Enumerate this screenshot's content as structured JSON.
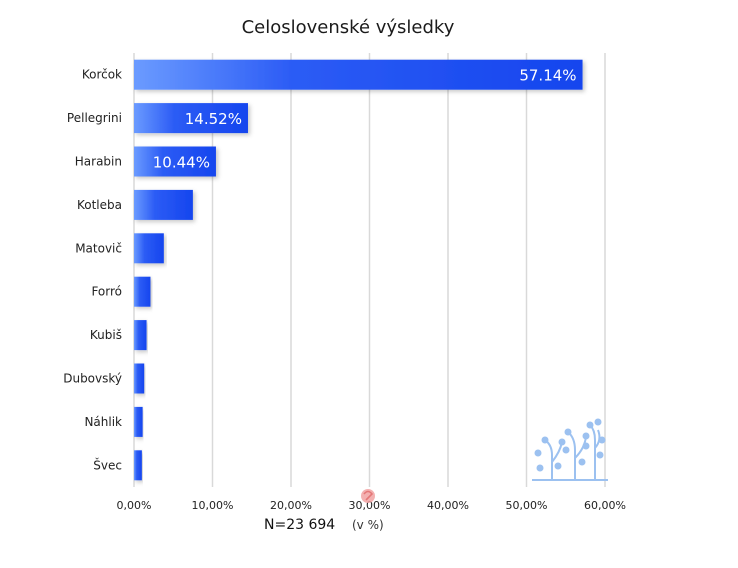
{
  "chart_data": {
    "type": "bar",
    "orientation": "horizontal",
    "title": "Celoslovenské výsledky",
    "categories": [
      "Korčok",
      "Pellegrini",
      "Harabin",
      "Kotleba",
      "Matovič",
      "Forró",
      "Kubiš",
      "Dubovský",
      "Náhlik",
      "Švec"
    ],
    "values": [
      57.14,
      14.52,
      10.44,
      7.5,
      3.8,
      2.1,
      1.6,
      1.3,
      1.1,
      1.0
    ],
    "data_labels": [
      "57.14%",
      "14.52%",
      "10.44%",
      "",
      "",
      "",
      "",
      "",
      "",
      ""
    ],
    "x_ticks": [
      "0,00%",
      "10,00%",
      "20,00%",
      "30,00%",
      "40,00%",
      "50,00%",
      "60,00%"
    ],
    "xlim": [
      0,
      60
    ],
    "grid": true,
    "footer_n": "N=23 694",
    "footer_unit": "(v %)",
    "colors": {
      "bar_start": "#5a8dff",
      "bar_end": "#1747f0",
      "grid": "#d9d9d9",
      "logo": "#9cc1f0"
    }
  }
}
